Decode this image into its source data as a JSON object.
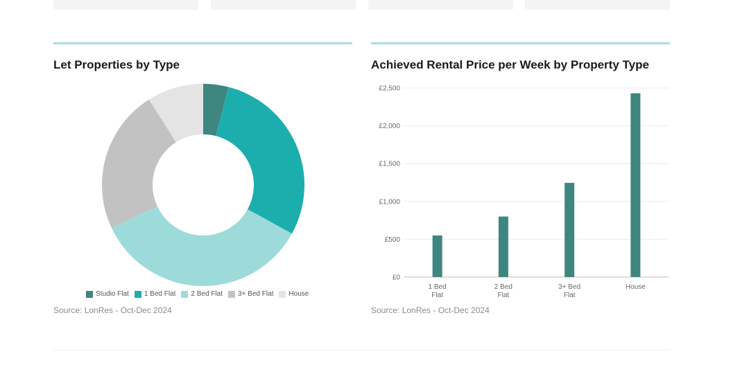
{
  "colors": {
    "studio": "#3f8580",
    "one_bed": "#1caead",
    "two_bed": "#9ddbda",
    "three_bed": "#c2c2c2",
    "house": "#e4e4e4",
    "bar": "#3f8580",
    "rule": "#a8dce0",
    "grid": "#e9e9e9"
  },
  "left_panel": {
    "title": "Let Properties by Type",
    "source": "Source: LonRes - Oct-Dec 2024"
  },
  "right_panel": {
    "title": "Achieved Rental Price per Week by Property Type",
    "source": "Source: LonRes - Oct-Dec 2024"
  },
  "chart_data": [
    {
      "type": "pie",
      "donut": true,
      "title": "Let Properties by Type",
      "labels": [
        "Studio Flat",
        "1 Bed Flat",
        "2 Bed Flat",
        "3+ Bed Flat",
        "House"
      ],
      "values": [
        4,
        29,
        35,
        23,
        9
      ],
      "legend_position": "bottom"
    },
    {
      "type": "bar",
      "title": "Achieved Rental Price per Week by Property Type",
      "categories": [
        [
          "1 Bed",
          "Flat"
        ],
        [
          "2 Bed",
          "Flat"
        ],
        [
          "3+ Bed",
          "Flat"
        ],
        [
          "House"
        ]
      ],
      "values": [
        550,
        800,
        1245,
        2430
      ],
      "ylim": [
        0,
        2500
      ],
      "yticks": [
        0,
        500,
        1000,
        1500,
        2000,
        2500
      ],
      "ytick_labels": [
        "£0",
        "£500",
        "£1,000",
        "£1,500",
        "£2,000",
        "£2,500"
      ],
      "grid": true
    }
  ]
}
